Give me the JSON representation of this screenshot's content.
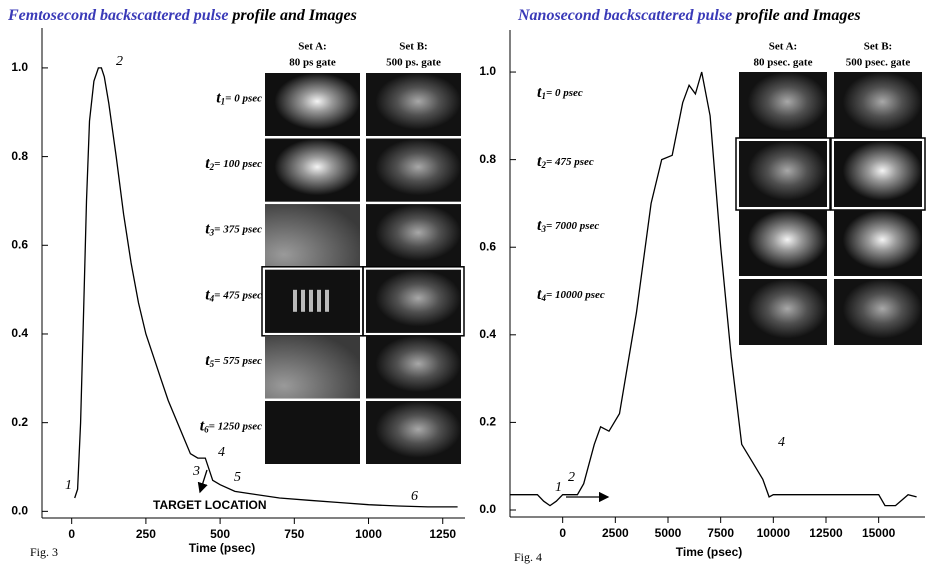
{
  "chart_data": [
    {
      "type": "line",
      "title_parts": [
        {
          "text": "Femtosecond backscattered pulse",
          "color": "#3a3ab8"
        },
        {
          "text": " profile and Images",
          "color": "#000000"
        }
      ],
      "x_label": "Time (psec)",
      "figure_label": "Fig. 3",
      "x": [
        10,
        20,
        30,
        40,
        50,
        60,
        75,
        90,
        100,
        110,
        125,
        150,
        175,
        200,
        225,
        250,
        275,
        300,
        325,
        350,
        375,
        400,
        425,
        450,
        475,
        500,
        550,
        600,
        700,
        800,
        900,
        1000,
        1100,
        1200,
        1300
      ],
      "values": [
        0.03,
        0.05,
        0.2,
        0.45,
        0.7,
        0.88,
        0.97,
        1.0,
        1.0,
        0.98,
        0.92,
        0.8,
        0.67,
        0.56,
        0.47,
        0.4,
        0.35,
        0.3,
        0.25,
        0.21,
        0.17,
        0.13,
        0.12,
        0.12,
        0.07,
        0.06,
        0.045,
        0.04,
        0.03,
        0.025,
        0.02,
        0.015,
        0.012,
        0.01,
        0.01
      ],
      "color": "#000000",
      "xlim": [
        -100,
        1325
      ],
      "ylim": [
        -0.015,
        1.09
      ],
      "xticks": [
        0,
        250,
        500,
        750,
        1000,
        1250
      ],
      "yticks": [
        {
          "value": 0,
          "label": "0.0"
        },
        0.2,
        0.4,
        0.6,
        0.8,
        {
          "value": 1,
          "label": "1.0"
        }
      ],
      "annotations": [
        "1",
        "2",
        "3",
        "4",
        "5",
        "6",
        "TARGET LOCATION"
      ],
      "set_headers": [
        {
          "name": "Set A:",
          "gate": "80 ps  gate",
          "color": "#3a3ab8"
        },
        {
          "name": "Set B:",
          "gate": "500 ps.  gate",
          "color": "#e0502a"
        }
      ],
      "time_labels": [
        {
          "symbol": "t",
          "index": "1",
          "text": "= 0 psec"
        },
        {
          "symbol": "t",
          "index": "2",
          "text": "= 100  psec"
        },
        {
          "symbol": "t",
          "index": "3",
          "text": "= 375 psec"
        },
        {
          "symbol": "t",
          "index": "4",
          "text": "= 475 psec"
        },
        {
          "symbol": "t",
          "index": "5",
          "text": "= 575 psec"
        },
        {
          "symbol": "t",
          "index": "6",
          "text": "= 1250 psec"
        }
      ]
    },
    {
      "type": "line",
      "title_parts": [
        {
          "text": "Nanosecond backscattered pulse",
          "color": "#3a3ab8"
        },
        {
          "text": " profile and Images",
          "color": "#000000"
        }
      ],
      "x_label": "Time (psec)",
      "figure_label": "Fig. 4",
      "x": [
        -2500,
        -1200,
        -900,
        -600,
        -300,
        0,
        700,
        1000,
        1500,
        1800,
        2200,
        2700,
        3500,
        4200,
        4700,
        5200,
        5700,
        6000,
        6300,
        6600,
        7000,
        7500,
        8000,
        8500,
        9000,
        9500,
        9800,
        10000,
        15000,
        15300,
        15800,
        16400,
        16800
      ],
      "values": [
        0.035,
        0.035,
        0.02,
        0.01,
        0.02,
        0.035,
        0.035,
        0.06,
        0.15,
        0.19,
        0.18,
        0.22,
        0.45,
        0.7,
        0.8,
        0.81,
        0.93,
        0.97,
        0.95,
        1.0,
        0.9,
        0.6,
        0.35,
        0.15,
        0.11,
        0.07,
        0.03,
        0.035,
        0.035,
        0.01,
        0.01,
        0.035,
        0.03
      ],
      "color": "#000000",
      "xlim": [
        -2500,
        17200
      ],
      "ylim": [
        -0.016,
        1.096
      ],
      "xticks": [
        0,
        2500,
        5000,
        7500,
        10000,
        12500,
        15000
      ],
      "yticks": [
        {
          "value": 0,
          "label": "0.0"
        },
        0.2,
        0.4,
        0.6,
        0.8,
        {
          "value": 1,
          "label": "1.0"
        }
      ],
      "annotations": [
        "1",
        "2",
        "4"
      ],
      "set_headers": [
        {
          "name": "Set A:",
          "gate": "80 psec.  gate",
          "color": "#2a8a2a"
        },
        {
          "name": "Set B:",
          "gate": "500 psec.  gate",
          "color": "#e0502a"
        }
      ],
      "time_labels": [
        {
          "symbol": "t",
          "index": "1",
          "text": "= 0 psec"
        },
        {
          "symbol": "t",
          "index": "2",
          "text": "= 475 psec"
        },
        {
          "symbol": "t",
          "index": "3",
          "text": "= 7000 psec"
        },
        {
          "symbol": "t",
          "index": "4",
          "text": "= 10000 psec"
        }
      ]
    }
  ]
}
